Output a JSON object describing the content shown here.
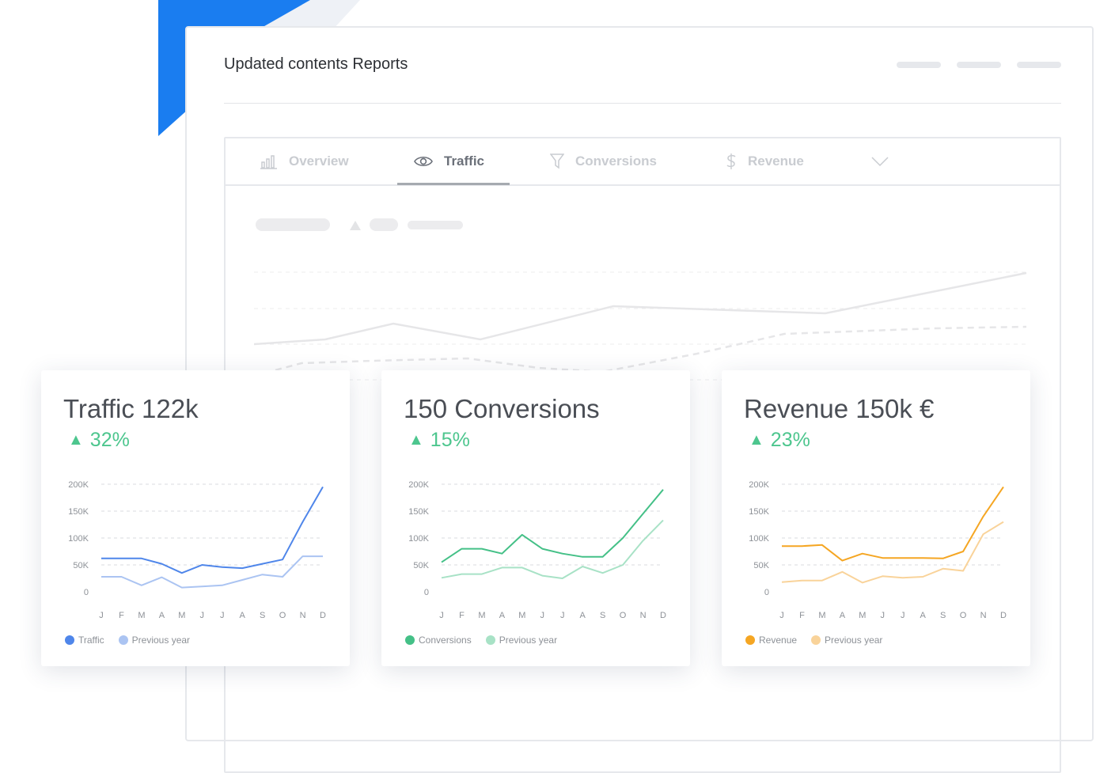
{
  "report": {
    "title": "Updated contents Reports",
    "tabs": [
      {
        "label": "Overview",
        "icon": "bar-chart-icon"
      },
      {
        "label": "Traffic",
        "icon": "eye-icon",
        "active": true
      },
      {
        "label": "Conversions",
        "icon": "funnel-icon"
      },
      {
        "label": "Revenue",
        "icon": "dollar-icon"
      }
    ]
  },
  "months": [
    "J",
    "F",
    "M",
    "A",
    "M",
    "J",
    "J",
    "A",
    "S",
    "O",
    "N",
    "D"
  ],
  "y_ticks": [
    "200K",
    "150K",
    "100K",
    "50K",
    "0"
  ],
  "cards": [
    {
      "title": "Traffic 122k",
      "change": "32%",
      "change_color": "#4dc68e",
      "legend": [
        "Traffic",
        "Previous year"
      ],
      "colors": [
        "#4f86ea",
        "#abc4f2"
      ]
    },
    {
      "title": "150 Conversions",
      "change": "15%",
      "change_color": "#4dc68e",
      "legend": [
        "Conversions",
        "Previous year"
      ],
      "colors": [
        "#44c087",
        "#a8e2c6"
      ]
    },
    {
      "title": "Revenue 150k €",
      "change": "23%",
      "change_color": "#4dc68e",
      "legend": [
        "Revenue",
        "Previous year"
      ],
      "colors": [
        "#f5a623",
        "#f9d39a"
      ]
    }
  ],
  "chart_data": [
    {
      "type": "line",
      "x": [
        "J",
        "F",
        "M",
        "A",
        "M",
        "J",
        "J",
        "A",
        "S",
        "O",
        "N",
        "D"
      ],
      "ylim": [
        0,
        200000
      ],
      "series": [
        {
          "name": "Traffic",
          "values": [
            62000,
            62000,
            62000,
            52000,
            35000,
            50000,
            46000,
            44000,
            52000,
            60000,
            130000,
            195000
          ]
        },
        {
          "name": "Previous year",
          "values": [
            28000,
            28000,
            12000,
            27000,
            8000,
            10000,
            12000,
            22000,
            32000,
            28000,
            66000,
            66000
          ]
        }
      ]
    },
    {
      "type": "line",
      "x": [
        "J",
        "F",
        "M",
        "A",
        "M",
        "J",
        "J",
        "A",
        "S",
        "O",
        "N",
        "D"
      ],
      "ylim": [
        0,
        200000
      ],
      "series": [
        {
          "name": "Conversions",
          "values": [
            55000,
            80000,
            80000,
            71000,
            106000,
            80000,
            71000,
            65000,
            65000,
            100000,
            145000,
            190000
          ]
        },
        {
          "name": "Previous year",
          "values": [
            26000,
            33000,
            33000,
            45000,
            45000,
            30000,
            25000,
            47000,
            35000,
            50000,
            95000,
            133000
          ]
        }
      ]
    },
    {
      "type": "line",
      "x": [
        "J",
        "F",
        "M",
        "A",
        "M",
        "J",
        "J",
        "A",
        "S",
        "O",
        "N",
        "D"
      ],
      "ylim": [
        0,
        200000
      ],
      "series": [
        {
          "name": "Revenue",
          "values": [
            85000,
            85000,
            87000,
            58000,
            71000,
            63000,
            63000,
            63000,
            62000,
            75000,
            140000,
            195000
          ]
        },
        {
          "name": "Previous year",
          "values": [
            18000,
            21000,
            21000,
            37000,
            17000,
            29000,
            26000,
            28000,
            43000,
            39000,
            107000,
            130000
          ]
        }
      ]
    }
  ]
}
